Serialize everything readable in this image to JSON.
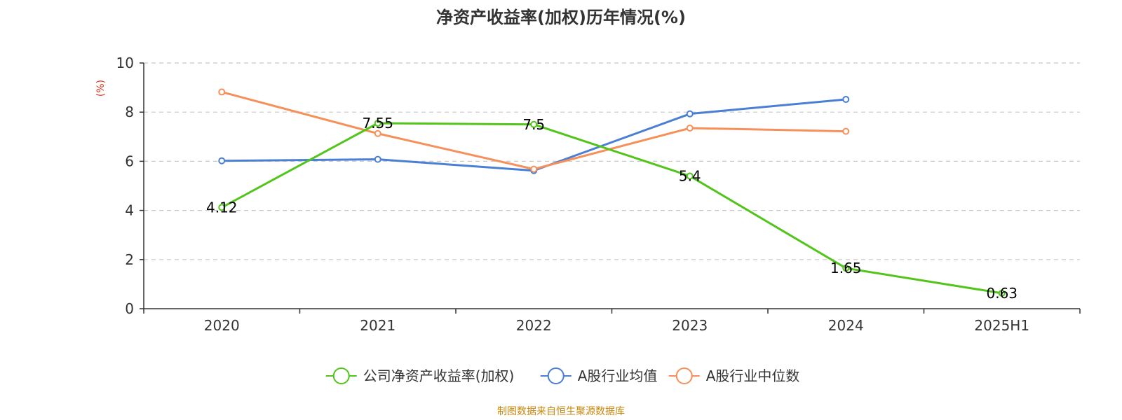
{
  "chart_data": {
    "type": "line",
    "title": "净资产收益率(加权)历年情况(%)",
    "ylabel": "(%)",
    "xlabel": "",
    "categories": [
      "2020",
      "2021",
      "2022",
      "2023",
      "2024",
      "2025H1"
    ],
    "ylim": [
      0,
      10
    ],
    "yticks": [
      0,
      2,
      4,
      6,
      8,
      10
    ],
    "grid": true,
    "legend_position": "bottom",
    "series": [
      {
        "name": "公司净资产收益率(加权)",
        "color": "#52c41a",
        "show_labels": true,
        "values": [
          4.12,
          7.55,
          7.5,
          5.4,
          1.65,
          0.63
        ]
      },
      {
        "name": "A股行业均值",
        "color": "#4a7fd4",
        "show_labels": false,
        "values": [
          6.02,
          6.08,
          5.62,
          7.93,
          8.52,
          null
        ]
      },
      {
        "name": "A股行业中位数",
        "color": "#f5905a",
        "show_labels": false,
        "values": [
          8.82,
          7.13,
          5.68,
          7.35,
          7.22,
          null
        ]
      }
    ],
    "unit_color": "#e0301e"
  },
  "footer": {
    "source": "制图数据来自恒生聚源数据库",
    "color": "#c8860a"
  }
}
